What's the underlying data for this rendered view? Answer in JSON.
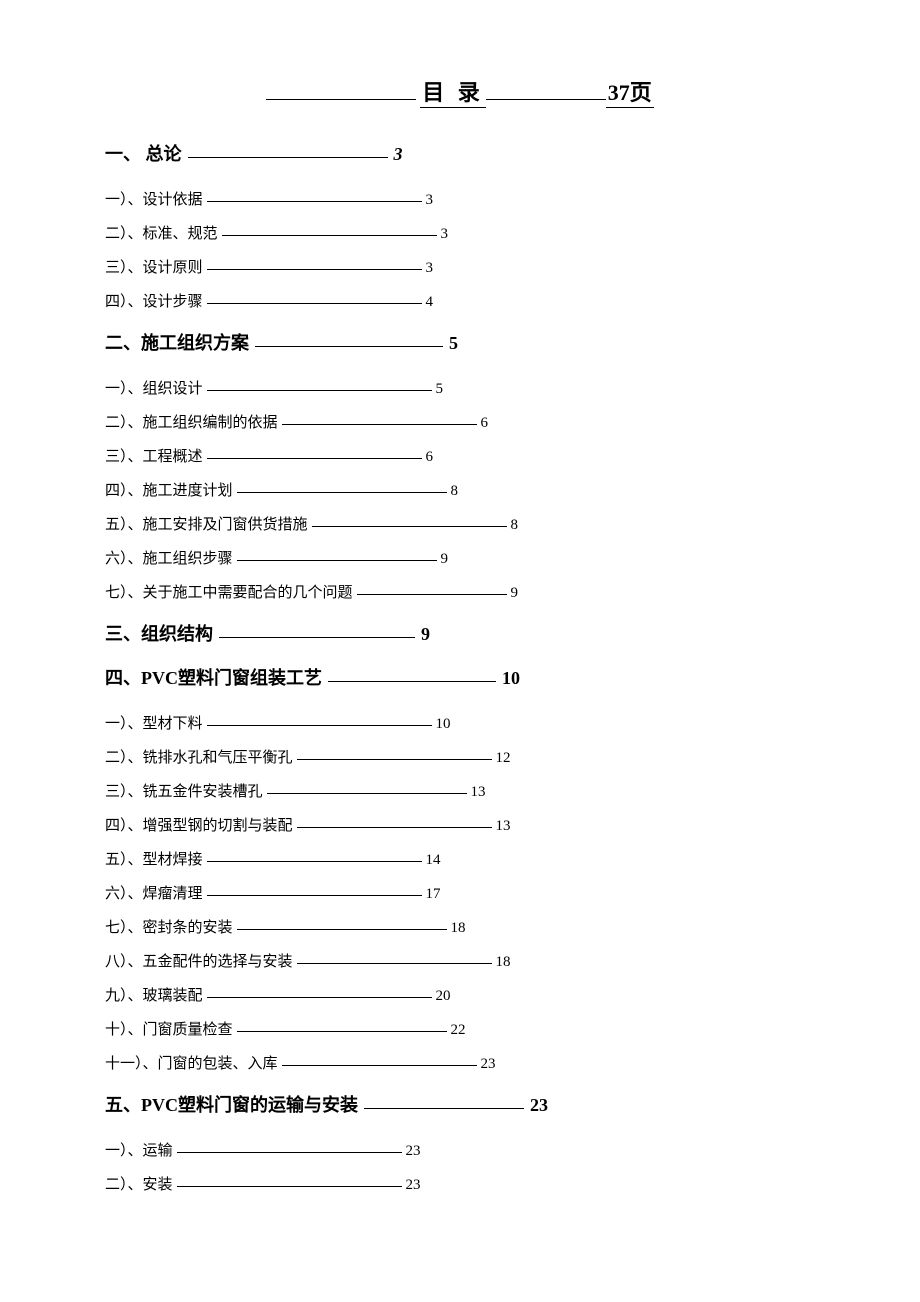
{
  "title": {
    "text": "目 录",
    "pages": "37页"
  },
  "sections": [
    {
      "label": "一、 总论",
      "page": "3",
      "page_italic": true,
      "trail_after": true,
      "subs": [
        {
          "label": "一）、设计依据",
          "page": "3",
          "filler_width": 215
        },
        {
          "label": "二）、标准、规范",
          "page": "3",
          "filler_width": 215
        },
        {
          "label": "三）、设计原则",
          "page": "3",
          "filler_width": 215
        },
        {
          "label": "四）、设计步骤",
          "page": "4",
          "filler_width": 215
        }
      ]
    },
    {
      "label": "二、施工组织方案",
      "page": "5",
      "subs": [
        {
          "label": "一）、组织设计",
          "page": "5",
          "filler_width": 225
        },
        {
          "label": "二）、施工组织编制的依据",
          "page": "6",
          "filler_width": 195
        },
        {
          "label": "三）、工程概述",
          "page": "6",
          "filler_width": 215
        },
        {
          "label": "四）、施工进度计划",
          "page": "8",
          "filler_width": 210
        },
        {
          "label": "五）、施工安排及门窗供货措施",
          "page": "8",
          "filler_width": 195
        },
        {
          "label": "六）、施工组织步骤",
          "page": "9",
          "filler_width": 200
        },
        {
          "label": "七）、关于施工中需要配合的几个问题",
          "page": "9",
          "filler_width": 150
        }
      ]
    },
    {
      "label": "三、组织结构",
      "page": "9",
      "subs": []
    },
    {
      "label": "四、PVC塑料门窗组装工艺",
      "page": "10",
      "subs": [
        {
          "label": "一）、型材下料",
          "page": "10",
          "filler_width": 225
        },
        {
          "label": "二）、铣排水孔和气压平衡孔",
          "page": "12",
          "filler_width": 195
        },
        {
          "label": "三）、铣五金件安装槽孔",
          "page": "13",
          "filler_width": 200
        },
        {
          "label": "四）、增强型钢的切割与装配",
          "page": "13",
          "filler_width": 195
        },
        {
          "label": "五）、型材焊接",
          "page": "14",
          "filler_width": 215
        },
        {
          "label": "六）、焊瘤清理",
          "page": "17",
          "filler_width": 215
        },
        {
          "label": "七）、密封条的安装",
          "page": "18",
          "filler_width": 210
        },
        {
          "label": "八）、五金配件的选择与安装",
          "page": "18",
          "filler_width": 195
        },
        {
          "label": "九）、玻璃装配",
          "page": "20",
          "filler_width": 225
        },
        {
          "label": "十）、门窗质量检查",
          "page": "22",
          "filler_width": 210
        },
        {
          "label": "十一）、门窗的包装、入库",
          "page": "23",
          "filler_width": 195
        }
      ]
    },
    {
      "label": "五、PVC塑料门窗的运输与安装",
      "page": "23",
      "subs": [
        {
          "label": "一）、运输",
          "page": "23",
          "filler_width": 225
        },
        {
          "label": "二）、安装",
          "page": "23",
          "filler_width": 225
        }
      ]
    }
  ]
}
